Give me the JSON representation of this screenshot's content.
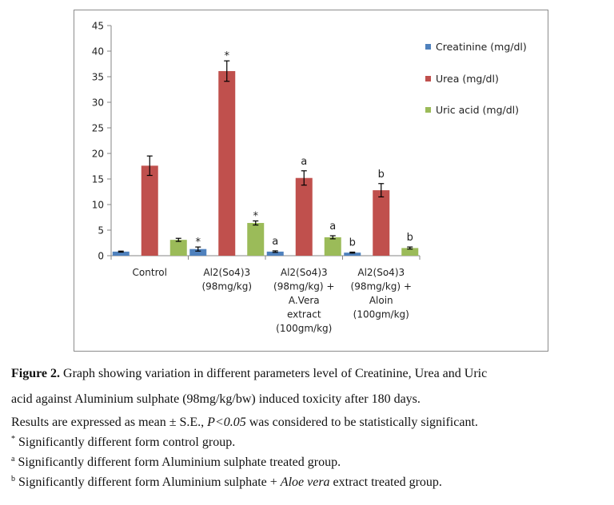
{
  "chart_data": {
    "type": "bar",
    "categories": [
      [
        "Control"
      ],
      [
        "Al2(So4)3",
        "(98mg/kg)"
      ],
      [
        "Al2(So4)3",
        "(98mg/kg) +",
        "A.Vera",
        "extract",
        "(100gm/kg)"
      ],
      [
        "Al2(So4)3",
        "(98mg/kg) +",
        "Aloin",
        "(100gm/kg)"
      ]
    ],
    "ylim": [
      0,
      45
    ],
    "yticks": [
      0,
      5,
      10,
      15,
      20,
      25,
      30,
      35,
      40,
      45
    ],
    "grid": false,
    "legend_position": "right",
    "series": [
      {
        "name": "Creatinine (mg/dl)",
        "color": "#4f81bd",
        "values": [
          0.8,
          1.3,
          0.8,
          0.6
        ],
        "errors": [
          0.1,
          0.4,
          0.15,
          0.1
        ],
        "annotations": [
          "",
          "*",
          "a",
          "b"
        ]
      },
      {
        "name": "Urea (mg/dl)",
        "color": "#c0504d",
        "values": [
          17.6,
          36.1,
          15.2,
          12.8
        ],
        "errors": [
          1.9,
          2.0,
          1.4,
          1.3
        ],
        "annotations": [
          "",
          "*",
          "a",
          "b"
        ]
      },
      {
        "name": "Uric acid (mg/dl)",
        "color": "#9bbb59",
        "values": [
          3.1,
          6.4,
          3.6,
          1.5
        ],
        "errors": [
          0.3,
          0.4,
          0.3,
          0.2
        ],
        "annotations": [
          "",
          "*",
          "a",
          "b"
        ]
      }
    ]
  },
  "caption": {
    "fig_label": "Figure 2.",
    "title_line1": " Graph showing variation in different parameters level of Creatinine, Urea and Uric",
    "title_line2": "acid against Aluminium sulphate (98mg/kg/bw) induced toxicity after 180 days.",
    "results_pre": "Results are expressed as mean ± S.E., ",
    "results_p": "P<0.05",
    "results_post": " was considered to be statistically significant.",
    "note1_mark": "*",
    "note1_text": " Significantly different form control group.",
    "note2_mark": "a",
    "note2_text": " Significantly different form Aluminium sulphate treated group.",
    "note3_mark": "b",
    "note3_text_pre": " Significantly different form Aluminium sulphate + ",
    "note3_italic": "Aloe vera",
    "note3_text_post": " extract treated group."
  }
}
